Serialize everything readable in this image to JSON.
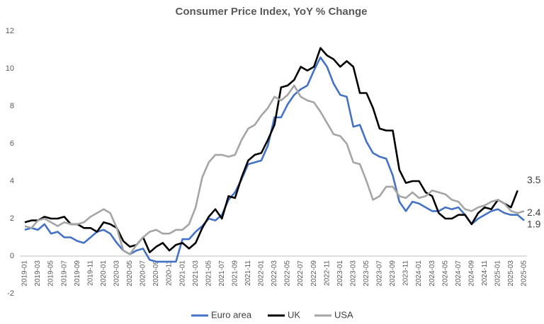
{
  "chart_data": {
    "type": "line",
    "title": "Consumer Price Index, YoY % Change",
    "categories": [
      "2019-01",
      null,
      "2019-03",
      null,
      "2019-05",
      null,
      "2019-07",
      null,
      "2019-09",
      null,
      "2019-11",
      null,
      "2020-01",
      null,
      "2020-03",
      null,
      "2020-05",
      null,
      "2020-07",
      null,
      "2020-09",
      null,
      "2020-11",
      null,
      "2021-01",
      null,
      "2021-03",
      null,
      "2021-05",
      null,
      "2021-07",
      null,
      "2021-09",
      null,
      "2021-11",
      null,
      "2022-01",
      null,
      "2022-03",
      null,
      "2022-05",
      null,
      "2022-07",
      null,
      "2022-09",
      null,
      "2022-11",
      null,
      "2023-01",
      null,
      "2023-03",
      null,
      "2023-05",
      null,
      "2023-07",
      null,
      "2023-09",
      null,
      "2023-11",
      null,
      "2024-01",
      null,
      "2024-03",
      null,
      "2024-05",
      null,
      "2024-07",
      null,
      "2024-09",
      null,
      "2024-11",
      null,
      "2025-01",
      null,
      "2025-03",
      null,
      "2025-05"
    ],
    "series": [
      {
        "name": "Euro area",
        "color": "#4472c4",
        "values": [
          1.4,
          1.5,
          1.4,
          1.7,
          1.2,
          1.3,
          1.0,
          1.0,
          0.8,
          0.7,
          1.0,
          1.3,
          1.4,
          1.2,
          0.7,
          0.3,
          0.1,
          0.3,
          0.4,
          -0.2,
          -0.3,
          -0.3,
          -0.3,
          -0.3,
          0.9,
          0.9,
          1.3,
          1.6,
          2.0,
          1.9,
          2.2,
          3.0,
          3.4,
          4.1,
          4.9,
          5.0,
          5.1,
          5.9,
          7.4,
          7.4,
          8.1,
          8.6,
          8.9,
          9.1,
          9.9,
          10.6,
          10.1,
          9.2,
          8.6,
          8.5,
          6.9,
          7.0,
          6.1,
          5.5,
          5.3,
          5.2,
          4.3,
          2.9,
          2.4,
          2.9,
          2.8,
          2.6,
          2.4,
          2.4,
          2.6,
          2.5,
          2.6,
          2.2,
          1.7,
          2.0,
          2.2,
          2.4,
          2.5,
          2.3,
          2.2,
          2.2,
          1.9
        ]
      },
      {
        "name": "UK",
        "color": "#000000",
        "values": [
          1.8,
          1.9,
          1.9,
          2.1,
          2.0,
          2.0,
          2.1,
          1.7,
          1.7,
          1.5,
          1.5,
          1.3,
          1.8,
          1.7,
          1.5,
          0.8,
          0.5,
          0.6,
          1.0,
          0.2,
          0.5,
          0.7,
          0.3,
          0.6,
          0.7,
          0.4,
          0.7,
          1.5,
          2.1,
          2.5,
          2.0,
          3.2,
          3.1,
          4.2,
          5.1,
          5.4,
          5.5,
          6.2,
          7.0,
          9.0,
          9.1,
          9.4,
          10.1,
          9.9,
          10.1,
          11.1,
          10.7,
          10.5,
          10.1,
          10.4,
          10.1,
          8.7,
          8.7,
          7.9,
          6.8,
          6.7,
          6.7,
          4.6,
          3.9,
          4.0,
          4.0,
          3.4,
          3.2,
          2.3,
          2.0,
          2.0,
          2.2,
          2.2,
          1.7,
          2.3,
          2.6,
          2.5,
          3.0,
          2.8,
          2.6,
          3.5,
          null
        ]
      },
      {
        "name": "USA",
        "color": "#a5a5a5",
        "values": [
          1.6,
          1.5,
          1.9,
          2.0,
          1.8,
          1.6,
          1.8,
          1.7,
          1.7,
          1.8,
          2.1,
          2.3,
          2.5,
          2.3,
          1.5,
          0.3,
          0.1,
          0.6,
          1.0,
          1.3,
          1.4,
          1.2,
          1.2,
          1.4,
          1.4,
          1.7,
          2.6,
          4.2,
          5.0,
          5.4,
          5.4,
          5.3,
          5.4,
          6.2,
          6.8,
          7.0,
          7.5,
          7.9,
          8.5,
          8.3,
          8.6,
          9.1,
          8.5,
          8.3,
          8.2,
          7.7,
          7.1,
          6.5,
          6.4,
          6.0,
          5.0,
          4.9,
          4.0,
          3.0,
          3.2,
          3.7,
          3.7,
          3.2,
          3.1,
          3.4,
          3.1,
          3.2,
          3.5,
          3.4,
          3.3,
          3.0,
          2.9,
          2.5,
          2.4,
          2.6,
          2.7,
          2.9,
          3.0,
          2.8,
          2.4,
          2.3,
          2.4
        ]
      }
    ],
    "ylim": [
      -2,
      12
    ],
    "yticks": [
      -2,
      0,
      2,
      4,
      6,
      8,
      10,
      12
    ],
    "grid": false,
    "legend": "bottom"
  }
}
